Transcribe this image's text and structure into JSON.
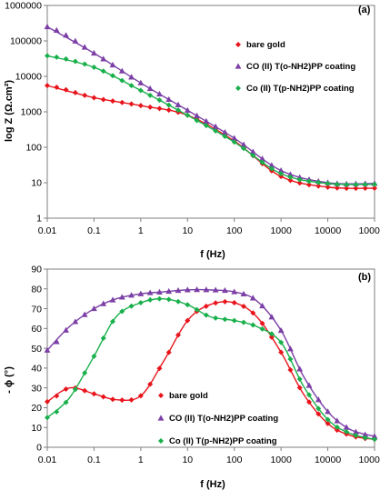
{
  "chart_data": [
    {
      "type": "line",
      "panel_label": "(a)",
      "xlabel": "f (Hz)",
      "ylabel": "log Z (Ω.cm²)",
      "xscale": "log",
      "yscale": "log",
      "xlim": [
        0.01,
        100000
      ],
      "ylim": [
        1,
        1000000
      ],
      "x_ticks": [
        "0.01",
        "0.1",
        "1",
        "10",
        "100",
        "1000",
        "10000",
        "100000"
      ],
      "y_ticks": [
        "1",
        "10",
        "100",
        "1000",
        "10000",
        "100000",
        "1000000"
      ],
      "grid": false,
      "legend_position": "top-right",
      "x": [
        0.01,
        0.1,
        1,
        10,
        100,
        1000,
        10000,
        100000
      ],
      "series": [
        {
          "name": "bare gold",
          "color": "#e8141b",
          "marker": "diamond",
          "values": [
            5500,
            2500,
            1500,
            800,
            150,
            15,
            7.5,
            7
          ]
        },
        {
          "name": "CO (II) T(o-NH2)PP coating",
          "color": "#7b3fa6",
          "marker": "triangle",
          "values": [
            250000,
            45000,
            6500,
            1100,
            180,
            22,
            10,
            9.5
          ]
        },
        {
          "name": "Co (II) T(p-NH2)PP coating",
          "color": "#19b04c",
          "marker": "diamond",
          "values": [
            38000,
            18000,
            4000,
            800,
            140,
            18,
            9.5,
            9
          ]
        }
      ]
    },
    {
      "type": "line",
      "panel_label": "(b)",
      "xlabel": "f (Hz)",
      "ylabel": "- ϕ (°)",
      "xscale": "log",
      "xlim": [
        0.01,
        100000
      ],
      "ylim": [
        0,
        90
      ],
      "x_ticks": [
        "0.01",
        "0.1",
        "1",
        "10",
        "100",
        "1000",
        "10000",
        "100000"
      ],
      "y_ticks": [
        "0",
        "10",
        "20",
        "30",
        "40",
        "50",
        "60",
        "70",
        "80",
        "90"
      ],
      "grid": false,
      "legend_position": "bottom-center",
      "x": [
        0.01,
        0.03,
        0.1,
        0.3,
        1,
        3,
        10,
        30,
        100,
        300,
        1000,
        3000,
        10000,
        30000,
        100000
      ],
      "series": [
        {
          "name": "bare gold",
          "color": "#e8141b",
          "marker": "diamond",
          "values": [
            23,
            30,
            27,
            24,
            26,
            43,
            64,
            72,
            73,
            66,
            48,
            27,
            12,
            6,
            4
          ]
        },
        {
          "name": "CO (II) T(o-NH2)PP coating",
          "color": "#7b3fa6",
          "marker": "triangle",
          "values": [
            49,
            61,
            70,
            75,
            77.5,
            78.5,
            79.5,
            79.5,
            78.5,
            74,
            59,
            36,
            18,
            9,
            5.5
          ]
        },
        {
          "name": "Co (II) T(p-NH2)PP coating",
          "color": "#19b04c",
          "marker": "diamond",
          "values": [
            15,
            25,
            46,
            66,
            73,
            75,
            72,
            66,
            64,
            61,
            53,
            31,
            14,
            7,
            4
          ]
        }
      ]
    }
  ]
}
